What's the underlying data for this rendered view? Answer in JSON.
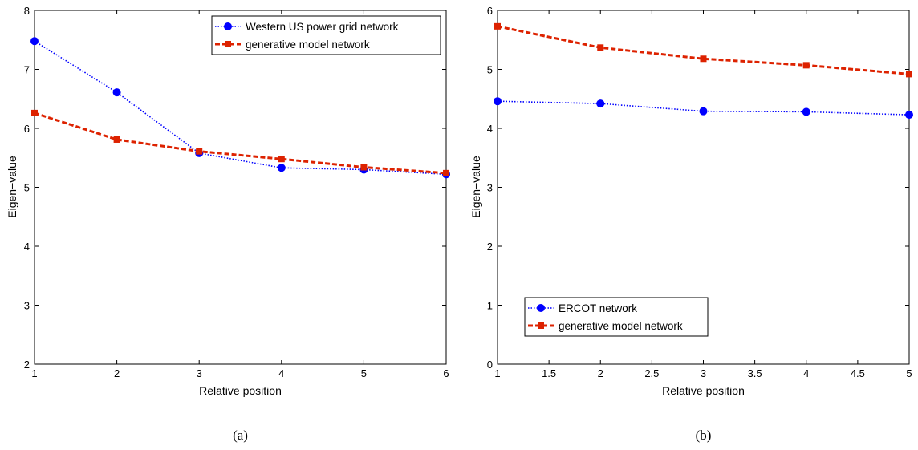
{
  "colors": {
    "series1": "#0000ff",
    "series2": "#dd2200"
  },
  "chart_data": [
    {
      "type": "line",
      "caption": "(a)",
      "xlabel": "Relative position",
      "ylabel": "Eigen−value",
      "xlim": [
        1,
        6
      ],
      "ylim": [
        2,
        8
      ],
      "xticks": [
        1,
        2,
        3,
        4,
        5,
        6
      ],
      "yticks": [
        2,
        3,
        4,
        5,
        6,
        7,
        8
      ],
      "grid": false,
      "legend_position": "top-right",
      "series": [
        {
          "name": "Western US power grid network",
          "style": "dotted",
          "marker": "circle",
          "x": [
            1,
            2,
            3,
            4,
            5,
            6
          ],
          "y": [
            7.48,
            6.61,
            5.58,
            5.33,
            5.3,
            5.22
          ]
        },
        {
          "name": "generative model network",
          "style": "dashed",
          "marker": "square",
          "x": [
            1,
            2,
            3,
            4,
            5,
            6
          ],
          "y": [
            6.26,
            5.81,
            5.61,
            5.48,
            5.34,
            5.24
          ]
        }
      ]
    },
    {
      "type": "line",
      "caption": "(b)",
      "xlabel": "Relative position",
      "ylabel": "Eigen−value",
      "xlim": [
        1,
        5
      ],
      "ylim": [
        0,
        6
      ],
      "xticks": [
        1,
        1.5,
        2,
        2.5,
        3,
        3.5,
        4,
        4.5,
        5
      ],
      "yticks": [
        0,
        1,
        2,
        3,
        4,
        5,
        6
      ],
      "grid": false,
      "legend_position": "bottom-left",
      "series": [
        {
          "name": "ERCOT network",
          "style": "dotted",
          "marker": "circle",
          "x": [
            1,
            2,
            3,
            4,
            5
          ],
          "y": [
            4.46,
            4.42,
            4.29,
            4.28,
            4.23
          ]
        },
        {
          "name": "generative model network",
          "style": "dashed",
          "marker": "square",
          "x": [
            1,
            2,
            3,
            4,
            5
          ],
          "y": [
            5.73,
            5.37,
            5.18,
            5.07,
            4.92
          ]
        }
      ]
    }
  ]
}
